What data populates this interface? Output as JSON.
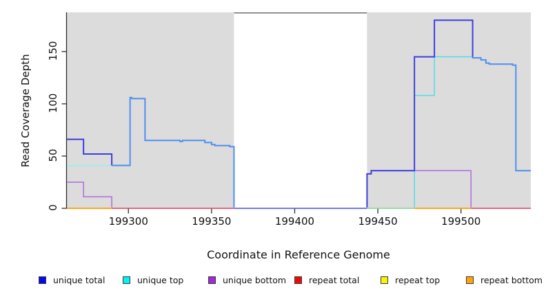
{
  "chart_data": {
    "type": "line",
    "title": "",
    "xlabel": "Coordinate in Reference Genome",
    "ylabel": "Read Coverage Depth",
    "xlim": [
      199263,
      199542
    ],
    "ylim": [
      0,
      187
    ],
    "x_ticks": [
      199300,
      199350,
      199400,
      199450,
      199500
    ],
    "y_ticks": [
      0,
      50,
      100,
      150
    ],
    "grid": false,
    "legend_position": "bottom",
    "background_regions": [
      {
        "name": "shaded-region-left",
        "x0": 199263,
        "x1": 199363.5,
        "fill": "#dcdcdc"
      },
      {
        "name": "gap-region",
        "x0": 199363.5,
        "x1": 199443.5,
        "fill": "#ffffff",
        "top_border": "#6e6e6e"
      },
      {
        "name": "shaded-region-right",
        "x0": 199443.5,
        "x1": 199542,
        "fill": "#dcdcdc"
      }
    ],
    "series": [
      {
        "name": "unique total",
        "color": "#0808ee",
        "points": [
          [
            199263,
            66
          ],
          [
            199273,
            66
          ],
          [
            199273,
            52
          ],
          [
            199290,
            52
          ],
          [
            199290,
            41
          ],
          [
            199301,
            41
          ],
          [
            199301,
            105
          ],
          [
            199310,
            105
          ],
          [
            199310,
            65
          ],
          [
            199346,
            65
          ],
          [
            199346,
            63
          ],
          [
            199350,
            63
          ],
          [
            199350,
            60
          ],
          [
            199361,
            60
          ],
          [
            199361,
            59
          ],
          [
            199364,
            59
          ],
          [
            199364,
            0
          ],
          [
            199443,
            0
          ],
          [
            199443,
            33
          ],
          [
            199446,
            33
          ],
          [
            199446,
            36
          ],
          [
            199472,
            36
          ],
          [
            199472,
            145
          ],
          [
            199484,
            145
          ],
          [
            199484,
            180
          ],
          [
            199507,
            180
          ],
          [
            199507,
            144
          ],
          [
            199512,
            144
          ],
          [
            199512,
            142
          ],
          [
            199515,
            142
          ],
          [
            199515,
            139
          ],
          [
            199517,
            138
          ],
          [
            199531,
            138
          ],
          [
            199533,
            137
          ],
          [
            199533,
            36
          ],
          [
            199542,
            36
          ]
        ]
      },
      {
        "name": "unique top",
        "color": "#00f2f2",
        "points": [
          [
            199263,
            41
          ],
          [
            199301,
            41
          ],
          [
            199301,
            0
          ],
          [
            199472,
            0
          ],
          [
            199472,
            108
          ],
          [
            199484,
            108
          ],
          [
            199484,
            145
          ],
          [
            199507,
            145
          ]
        ]
      },
      {
        "name": "unique bottom",
        "color": "#9f2bd6",
        "points": [
          [
            199263,
            25
          ],
          [
            199273,
            25
          ],
          [
            199273,
            11
          ],
          [
            199290,
            11
          ],
          [
            199290,
            0
          ],
          [
            199446,
            0
          ],
          [
            199446,
            36
          ],
          [
            199506,
            36
          ],
          [
            199506,
            0
          ],
          [
            199542,
            0
          ]
        ]
      },
      {
        "name": "repeat total",
        "color": "#ee0808",
        "points": [
          [
            199263,
            0
          ],
          [
            199542,
            0
          ]
        ]
      },
      {
        "name": "repeat top",
        "color": "#f5f500",
        "points": [
          [
            199263,
            0
          ],
          [
            199542,
            0
          ]
        ]
      },
      {
        "name": "repeat bottom",
        "color": "#ffa408",
        "points": [
          [
            199263,
            0
          ],
          [
            199542,
            0
          ]
        ]
      }
    ],
    "legend": [
      {
        "label": "unique total",
        "color": "#0808ee"
      },
      {
        "label": "unique top",
        "color": "#00f2f2"
      },
      {
        "label": "unique bottom",
        "color": "#9f2bd6"
      },
      {
        "label": "repeat total",
        "color": "#ee0808"
      },
      {
        "label": "repeat top",
        "color": "#f5f500"
      },
      {
        "label": "repeat bottom",
        "color": "#ffa408"
      }
    ]
  },
  "render_series": [
    {
      "name": "repeat-total-line",
      "color": "#e23a60",
      "width": 1.4,
      "paths": [
        [
          [
            199290,
            0
          ],
          [
            199363.5,
            0
          ]
        ],
        [
          [
            199506,
            0
          ],
          [
            199542,
            0
          ]
        ]
      ]
    },
    {
      "name": "zero-line-gap-region",
      "color": "#6262e8",
      "width": 1.7,
      "paths": [
        [
          [
            199363.5,
            0
          ],
          [
            199443.5,
            0
          ]
        ]
      ]
    },
    {
      "name": "zero-line-green-blend",
      "color": "#8fd69b",
      "width": 1.7,
      "paths": [
        [
          [
            199443.5,
            0
          ],
          [
            199472,
            0
          ]
        ]
      ]
    },
    {
      "name": "repeat-bottom-line",
      "color": "#ffa41a",
      "width": 1.9,
      "paths": [
        [
          [
            199263,
            0
          ],
          [
            199290,
            0
          ]
        ],
        [
          [
            199472,
            0
          ],
          [
            199506,
            0
          ]
        ]
      ]
    },
    {
      "name": "unique-top-line-left",
      "color": "#a5e9ea",
      "width": 1.9,
      "paths": [
        [
          [
            199263,
            41
          ],
          [
            199301,
            41
          ]
        ]
      ]
    },
    {
      "name": "unique-top-line-right",
      "color": "#49dce6",
      "width": 1.4,
      "paths": [
        [
          [
            199472,
            0.8
          ],
          [
            199472,
            108
          ],
          [
            199484,
            108
          ],
          [
            199484,
            145
          ],
          [
            199507,
            145
          ]
        ]
      ]
    },
    {
      "name": "unique-bottom-line",
      "color": "#ad6cdb",
      "width": 1.5,
      "paths": [
        [
          [
            199263,
            25
          ],
          [
            199273,
            25
          ],
          [
            199273,
            11
          ],
          [
            199290,
            11
          ],
          [
            199290,
            0.8
          ]
        ],
        [
          [
            199446,
            36
          ],
          [
            199506,
            36
          ],
          [
            199506,
            0.8
          ]
        ]
      ]
    },
    {
      "name": "unique-total-line-dark",
      "color": "#3d3ddf",
      "width": 2,
      "paths": [
        [
          [
            199263,
            66
          ],
          [
            199273,
            66
          ],
          [
            199273,
            52
          ],
          [
            199290,
            52
          ],
          [
            199290,
            41
          ]
        ],
        [
          [
            199443.5,
            0.8
          ],
          [
            199443.5,
            33
          ],
          [
            199446,
            33
          ],
          [
            199446,
            36
          ],
          [
            199472,
            36
          ],
          [
            199472,
            145
          ],
          [
            199484,
            145
          ],
          [
            199484,
            180
          ],
          [
            199507,
            180
          ],
          [
            199507,
            145
          ]
        ]
      ]
    },
    {
      "name": "unique-total-line-light",
      "color": "#4f8df0",
      "width": 2,
      "paths": [
        [
          [
            199290,
            41
          ],
          [
            199301,
            41
          ],
          [
            199301,
            106
          ],
          [
            199302,
            106
          ],
          [
            199302,
            105
          ],
          [
            199310,
            105
          ],
          [
            199310,
            65
          ],
          [
            199331,
            65
          ],
          [
            199331,
            64
          ],
          [
            199332.5,
            64
          ],
          [
            199332.5,
            65
          ],
          [
            199346,
            65
          ],
          [
            199346,
            63
          ],
          [
            199350,
            63
          ],
          [
            199350,
            61
          ],
          [
            199352,
            61
          ],
          [
            199352,
            60
          ],
          [
            199361,
            60
          ],
          [
            199361,
            59
          ],
          [
            199363.5,
            59
          ],
          [
            199363.5,
            0.8
          ]
        ],
        [
          [
            199507,
            145
          ],
          [
            199507,
            144
          ],
          [
            199512,
            144
          ],
          [
            199512,
            142
          ],
          [
            199515,
            142
          ],
          [
            199515,
            139
          ],
          [
            199517,
            139
          ],
          [
            199517,
            138
          ],
          [
            199531,
            138
          ],
          [
            199531,
            137
          ],
          [
            199533,
            137
          ],
          [
            199533,
            36
          ],
          [
            199542,
            36
          ]
        ]
      ]
    }
  ]
}
